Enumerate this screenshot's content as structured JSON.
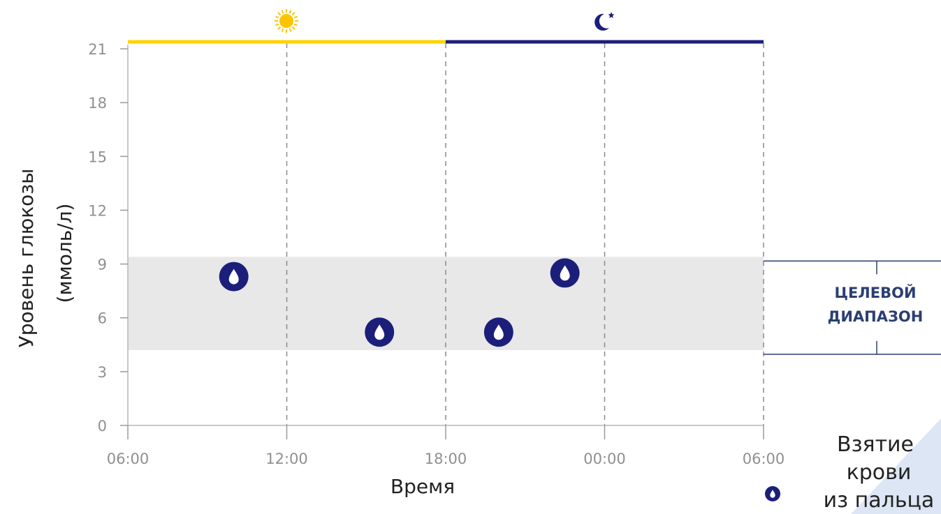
{
  "chart_data": {
    "type": "scatter",
    "xlabel": "Время",
    "ylabel": [
      "Уровень глюкозы",
      "(ммоль/л)"
    ],
    "x_ticks": [
      "06:00",
      "12:00",
      "18:00",
      "00:00",
      "06:00"
    ],
    "x_range_hours": [
      6,
      30
    ],
    "y_ticks": [
      0,
      3,
      6,
      9,
      12,
      15,
      18,
      21
    ],
    "ylim": [
      0,
      21
    ],
    "target_range": {
      "low": 4.2,
      "high": 9.4,
      "label": [
        "ЦЕЛЕВОЙ",
        "ДИАПАЗОН"
      ]
    },
    "series": [
      {
        "name": "Взятие крови из пальца",
        "points": [
          {
            "x": "10:00",
            "y": 8.3
          },
          {
            "x": "15:30",
            "y": 5.2
          },
          {
            "x": "20:00",
            "y": 5.2
          },
          {
            "x": "22:30",
            "y": 8.5
          }
        ]
      }
    ],
    "legend": {
      "lines": [
        "Взятие",
        "крови",
        "из пальца"
      ],
      "position": "bottom-right"
    },
    "day_period_icons": [
      "sun-icon",
      "moon-icon"
    ],
    "grid": "dashed vertical"
  },
  "colors": {
    "day_bar": "#FFD200",
    "night_bar": "#1B1F7A",
    "marker": "#1B1F7A",
    "target_band": "#E8E8E8",
    "range_label": "#2B3E73",
    "corner_accent": "#DCE6F4"
  }
}
